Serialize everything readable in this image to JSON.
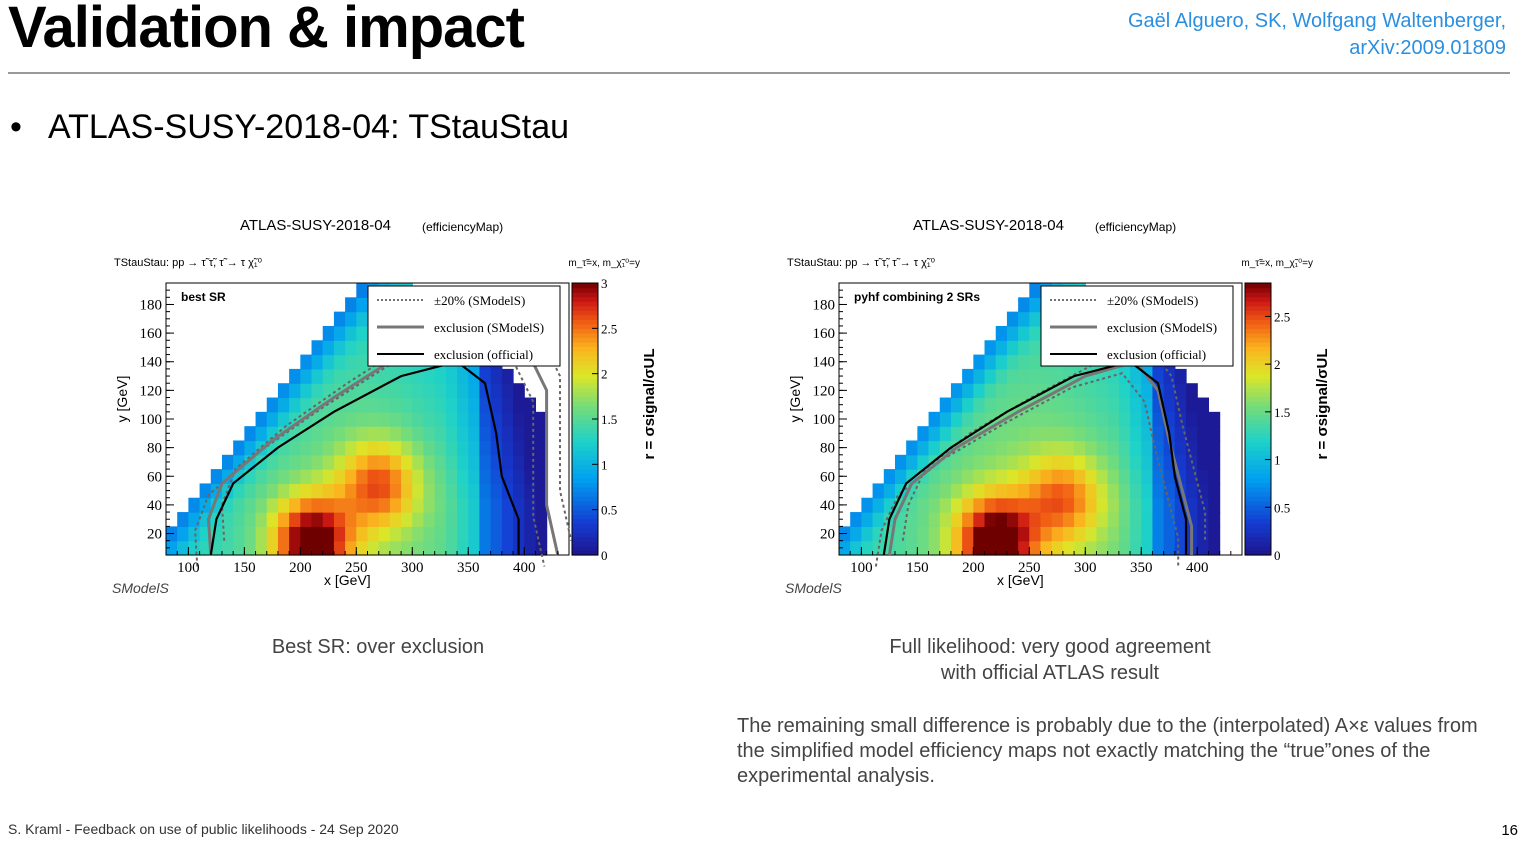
{
  "slide": {
    "title": "Validation & impact",
    "authors_line1": "Gaël Alguero, SK, Wolfgang Waltenberger,",
    "authors_line2": "arXiv:2009.01809",
    "bullet": "ATLAS-SUSY-2018-04: TStauStau",
    "caption_left": "Best SR: over exclusion",
    "caption_right_line1": "Full likelihood: very good agreement",
    "caption_right_line2": "with official ATLAS result",
    "note": "The remaining small difference is probably due to the (interpolated) A×ε values from the simplified model efficiency maps not exactly matching the “true”ones of the experimental analysis.",
    "footer": "S. Kraml - Feedback on use of public likelihoods - 24 Sep 2020",
    "page_number": "16",
    "colors": {
      "accent": "#2a8fe0"
    }
  },
  "chart_data": [
    {
      "type": "heatmap",
      "title": "ATLAS-SUSY-2018-04",
      "subtitle": "(efficiencyMap)",
      "process": "TStauStau: pp → τ̃ τ̃, τ̃ → τ χ̃₁⁰",
      "mass_note": "m_τ̃=x, m_χ̃₁⁰=y",
      "panel_label": "best SR",
      "xlabel": "x [GeV]",
      "ylabel": "y [GeV]",
      "zlabel": "r = σsignal/σUL",
      "xlim": [
        80,
        440
      ],
      "ylim": [
        5,
        195
      ],
      "zlim": [
        0,
        3
      ],
      "xticks": [
        100,
        150,
        200,
        250,
        300,
        350,
        400
      ],
      "yticks": [
        20,
        40,
        60,
        80,
        100,
        120,
        140,
        160,
        180
      ],
      "zticks": [
        "0",
        "0.5",
        "1",
        "1.5",
        "2",
        "2.5",
        "3"
      ],
      "legend_position": "top-right",
      "legend": [
        "±20% (SModelS)",
        "exclusion (SModelS)",
        "exclusion (official)"
      ],
      "hot_spots": [
        {
          "x": 210,
          "y": 15,
          "r": 2.9
        },
        {
          "x": 270,
          "y": 55,
          "r": 2.3
        }
      ],
      "curves": {
        "official": [
          [
            120,
            5
          ],
          [
            125,
            30
          ],
          [
            140,
            55
          ],
          [
            180,
            80
          ],
          [
            230,
            105
          ],
          [
            290,
            130
          ],
          [
            340,
            140
          ],
          [
            365,
            125
          ],
          [
            375,
            90
          ],
          [
            380,
            60
          ],
          [
            395,
            30
          ],
          [
            395,
            5
          ]
        ],
        "smodels": [
          [
            120,
            5
          ],
          [
            118,
            30
          ],
          [
            130,
            55
          ],
          [
            175,
            85
          ],
          [
            230,
            115
          ],
          [
            300,
            150
          ],
          [
            350,
            165
          ],
          [
            395,
            160
          ],
          [
            420,
            120
          ],
          [
            420,
            40
          ],
          [
            430,
            5
          ]
        ]
      },
      "logo": "SModelS"
    },
    {
      "type": "heatmap",
      "title": "ATLAS-SUSY-2018-04",
      "subtitle": "(efficiencyMap)",
      "process": "TStauStau: pp → τ̃ τ̃, τ̃ → τ χ̃₁⁰",
      "mass_note": "m_τ̃=x, m_χ̃₁⁰=y",
      "panel_label": "pyhf combining 2 SRs",
      "xlabel": "x [GeV]",
      "ylabel": "y [GeV]",
      "zlabel": "r = σsignal/σUL",
      "xlim": [
        80,
        440
      ],
      "ylim": [
        5,
        195
      ],
      "zlim": [
        0,
        2.85
      ],
      "xticks": [
        100,
        150,
        200,
        250,
        300,
        350,
        400
      ],
      "yticks": [
        20,
        40,
        60,
        80,
        100,
        120,
        140,
        160,
        180
      ],
      "zticks": [
        "0",
        "0.5",
        "1",
        "1.5",
        "2",
        "2.5"
      ],
      "legend_position": "top-right",
      "legend": [
        "±20% (SModelS)",
        "exclusion (SModelS)",
        "exclusion (official)"
      ],
      "hot_spots": [
        {
          "x": 220,
          "y": 15,
          "r": 2.8
        },
        {
          "x": 280,
          "y": 45,
          "r": 2.1
        }
      ],
      "curves": {
        "official": [
          [
            120,
            5
          ],
          [
            125,
            30
          ],
          [
            140,
            55
          ],
          [
            180,
            80
          ],
          [
            230,
            105
          ],
          [
            290,
            130
          ],
          [
            340,
            140
          ],
          [
            365,
            125
          ],
          [
            375,
            90
          ],
          [
            380,
            60
          ],
          [
            390,
            30
          ],
          [
            390,
            5
          ]
        ],
        "smodels": [
          [
            125,
            5
          ],
          [
            130,
            30
          ],
          [
            145,
            55
          ],
          [
            185,
            80
          ],
          [
            240,
            105
          ],
          [
            300,
            130
          ],
          [
            345,
            140
          ],
          [
            365,
            120
          ],
          [
            375,
            85
          ],
          [
            385,
            55
          ],
          [
            395,
            25
          ],
          [
            395,
            5
          ]
        ]
      },
      "logo": "SModelS"
    }
  ]
}
